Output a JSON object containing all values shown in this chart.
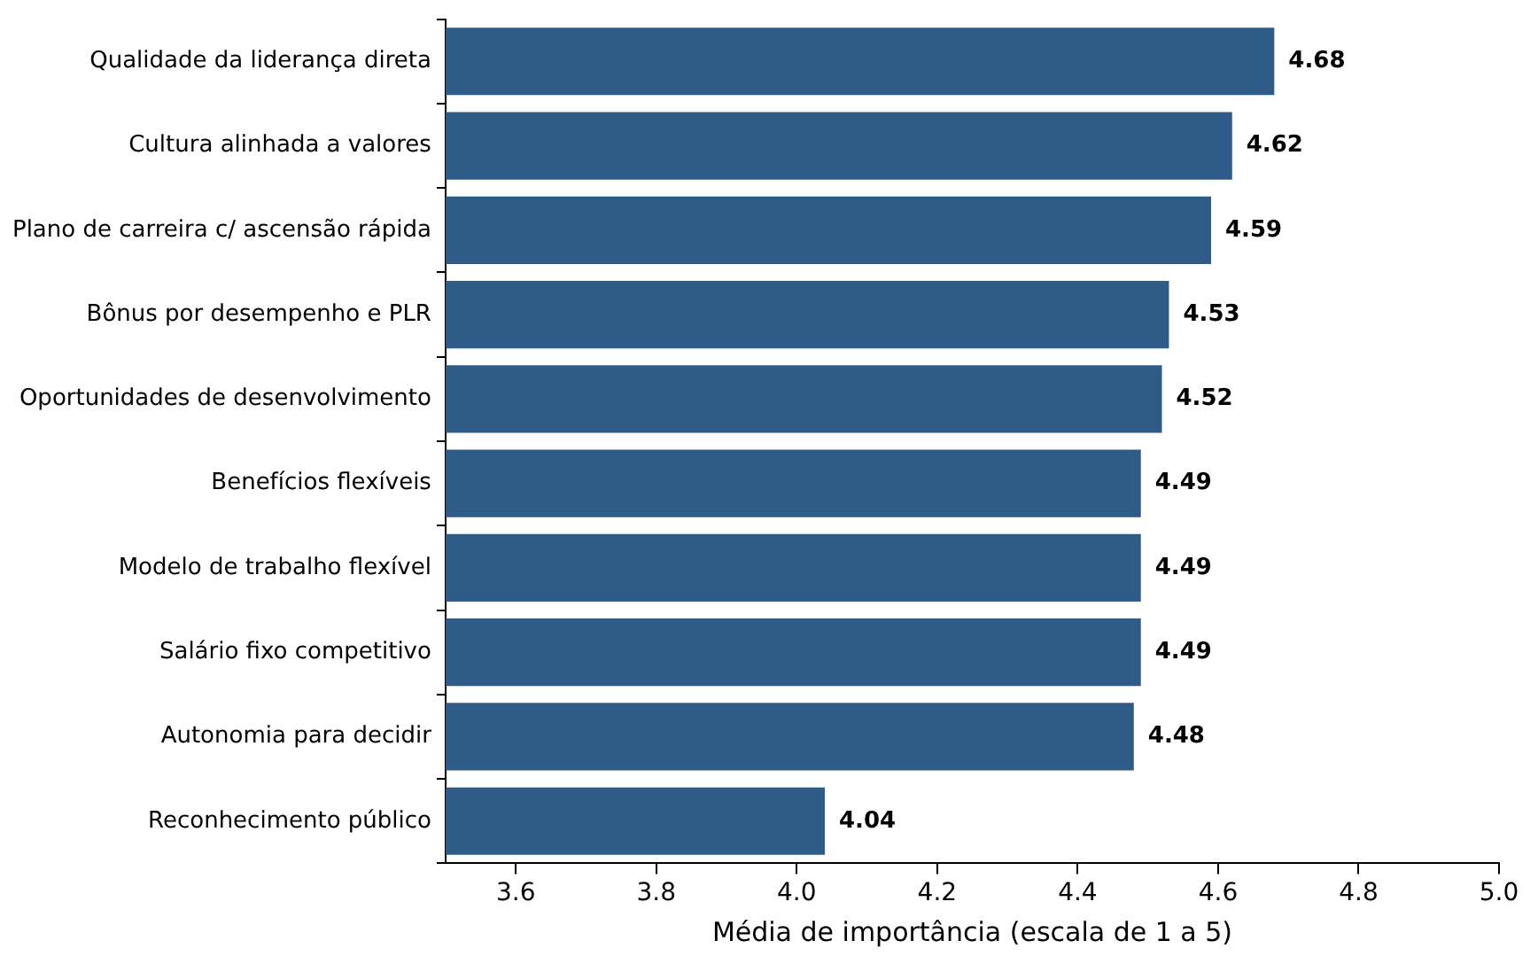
{
  "chart_data": {
    "type": "bar",
    "orientation": "horizontal",
    "xlabel": "Média de importância (escala de 1 a 5)",
    "categories": [
      "Qualidade da liderança direta",
      "Cultura alinhada a valores",
      "Plano de carreira c/ ascensão rápida",
      "Bônus por desempenho e PLR",
      "Oportunidades de desenvolvimento",
      "Benefícios flexíveis",
      "Modelo de trabalho flexível",
      "Salário fixo competitivo",
      "Autonomia para decidir",
      "Reconhecimento público"
    ],
    "values": [
      4.68,
      4.62,
      4.59,
      4.53,
      4.52,
      4.49,
      4.49,
      4.49,
      4.48,
      4.04
    ],
    "color": "#2e5b87",
    "xlim": [
      3.5,
      5.0
    ],
    "xticks": [
      3.6,
      3.8,
      {
        "value": 4,
        "label": "4.0"
      },
      4.2,
      4.4,
      4.6,
      4.8,
      {
        "value": 5,
        "label": "5.0"
      }
    ],
    "data_labels": true,
    "grid": false,
    "legend": false
  }
}
